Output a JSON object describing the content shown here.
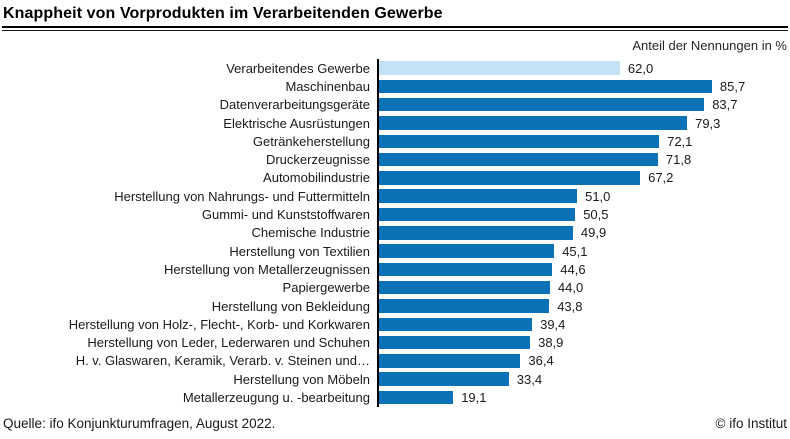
{
  "header": {
    "title": "Knappheit von Vorprodukten im Verarbeitenden Gewerbe",
    "axis_note": "Anteil der Nennungen in %"
  },
  "footer": {
    "source": "Quelle: ifo Konjunkturumfragen, August 2022.",
    "copyright": "© ifo Institut"
  },
  "colors": {
    "bar": "#0c72b8",
    "highlight_bar": "#c3e2f6",
    "axis": "#000000",
    "text": "#1a1a1a"
  },
  "chart_data": {
    "type": "bar",
    "orientation": "horizontal",
    "title": "Knappheit von Vorprodukten im Verarbeitenden Gewerbe",
    "xlabel": "Anteil der Nennungen in %",
    "xlim": [
      0,
      100
    ],
    "grid": false,
    "legend": false,
    "highlighted_category": "Verarbeitendes Gewerbe",
    "categories": [
      "Verarbeitendes Gewerbe",
      "Maschinenbau",
      "Datenverarbeitungsgeräte",
      "Elektrische Ausrüstungen",
      "Getränkeherstellung",
      "Druckerzeugnisse",
      "Automobilindustrie",
      "Herstellung von Nahrungs- und Futtermitteln",
      "Gummi- und Kunststoffwaren",
      "Chemische Industrie",
      "Herstellung von Textilien",
      "Herstellung von Metallerzeugnissen",
      "Papiergewerbe",
      "Herstellung von Bekleidung",
      "Herstellung von Holz-, Flecht-, Korb- und Korkwaren",
      "Herstellung von Leder, Lederwaren und Schuhen",
      "H. v. Glaswaren, Keramik, Verarb. v. Steinen und…",
      "Herstellung von Möbeln",
      "Metallerzeugung u. -bearbeitung"
    ],
    "values": [
      62.0,
      85.7,
      83.7,
      79.3,
      72.1,
      71.8,
      67.2,
      51.0,
      50.5,
      49.9,
      45.1,
      44.6,
      44.0,
      43.8,
      39.4,
      38.9,
      36.4,
      33.4,
      19.1
    ],
    "value_labels": [
      "62,0",
      "85,7",
      "83,7",
      "79,3",
      "72,1",
      "71,8",
      "67,2",
      "51,0",
      "50,5",
      "49,9",
      "45,1",
      "44,6",
      "44,0",
      "43,8",
      "39,4",
      "38,9",
      "36,4",
      "33,4",
      "19,1"
    ]
  }
}
